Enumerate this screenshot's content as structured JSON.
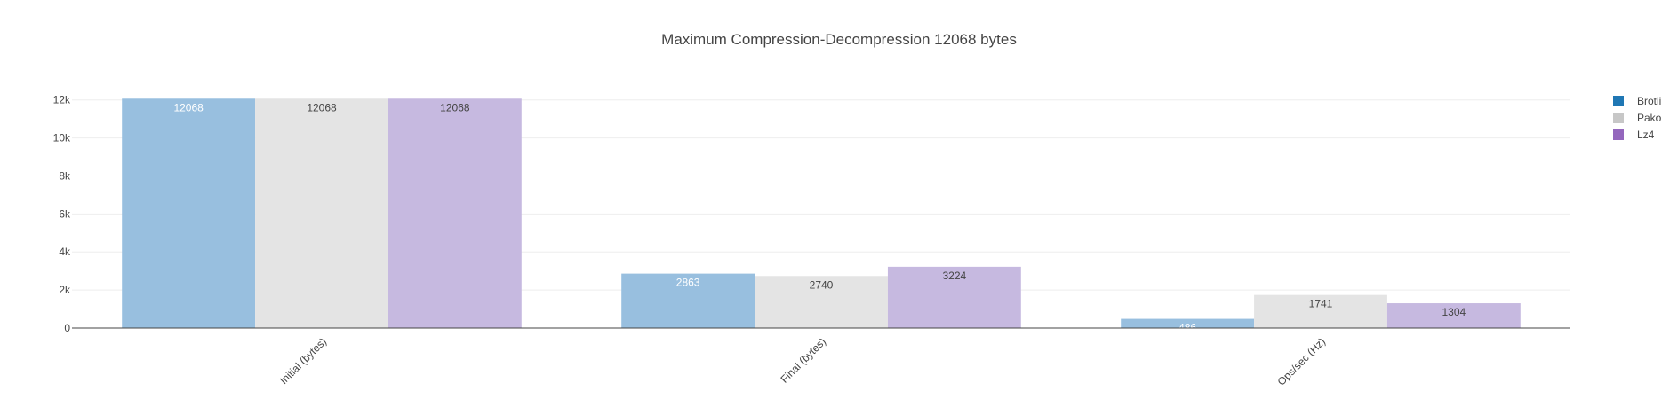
{
  "chart_data": {
    "type": "bar",
    "title": "Maximum Compression-Decompression 12068 bytes",
    "xlabel": "",
    "ylabel": "",
    "categories": [
      "Initial (bytes)",
      "Final (bytes)",
      "Ops/sec (Hz)"
    ],
    "series": [
      {
        "name": "Brotli",
        "values": [
          12068,
          2863,
          486
        ],
        "color": "#1f77b4",
        "bar_color": "#98bfdf",
        "label_color": "#ffffff"
      },
      {
        "name": "Pako",
        "values": [
          12068,
          2740,
          1741
        ],
        "color": "#c7c7c7",
        "bar_color": "#e4e4e4",
        "label_color": "#444444"
      },
      {
        "name": "Lz4",
        "values": [
          12068,
          3224,
          1304
        ],
        "color": "#9467bd",
        "bar_color": "#c6b9e0",
        "label_color": "#444444"
      }
    ],
    "ylim": [
      0,
      12500
    ],
    "yticks": [
      0,
      2000,
      4000,
      6000,
      8000,
      10000,
      12000
    ],
    "ytick_labels": [
      "0",
      "2k",
      "4k",
      "6k",
      "8k",
      "10k",
      "12k"
    ],
    "grid": true,
    "legend_position": "top-right"
  }
}
